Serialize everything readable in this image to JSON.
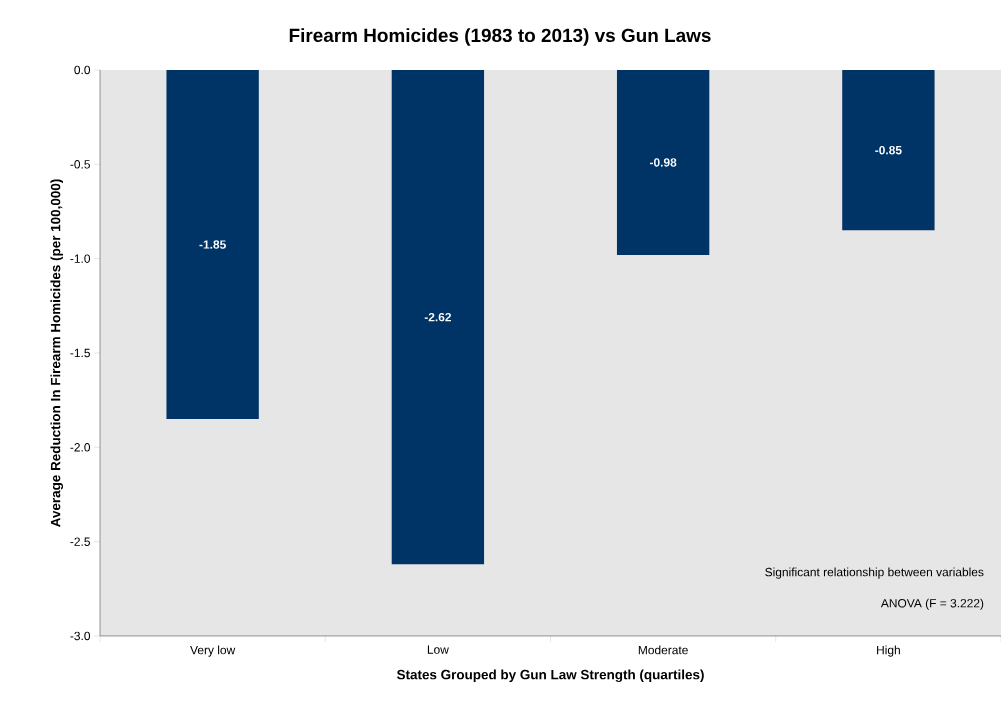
{
  "chart_data": {
    "type": "bar",
    "title": "Firearm Homicides (1983 to 2013) vs Gun Laws",
    "xlabel": "States Grouped by Gun Law Strength (quartiles)",
    "ylabel": "Average Reduction In Firearm Homicides (per 100,000)",
    "categories": [
      "Very low",
      "Low",
      "Moderate",
      "High"
    ],
    "values": [
      -1.85,
      -2.62,
      -0.98,
      -0.85
    ],
    "color": "#003366",
    "data_labels": true,
    "ylim": [
      -3.0,
      0.0
    ],
    "yticks": [
      {
        "value": -3.0,
        "label": "-3.0"
      },
      {
        "value": -2.5,
        "label": "-2.5"
      },
      {
        "value": -2.0,
        "label": "-2.0"
      },
      {
        "value": -1.5,
        "label": "-1.5"
      },
      {
        "value": -1.0,
        "label": "-1.0"
      },
      {
        "value": -0.5,
        "label": "-0.5"
      },
      {
        "value": 0.0,
        "label": "0.0"
      }
    ],
    "annotations": [
      "Significant relationship between variables",
      "ANOVA (F = 3.222)"
    ]
  }
}
